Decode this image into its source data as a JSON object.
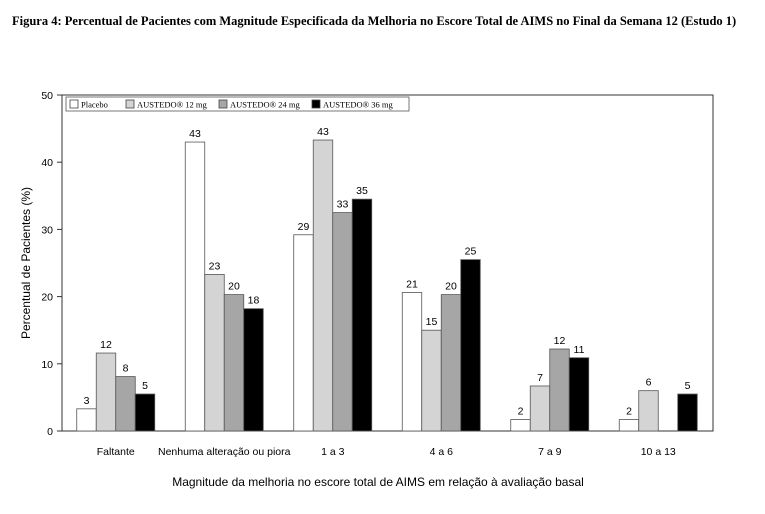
{
  "figure_title": "Figura 4: Percentual de Pacientes com Magnitude Especificada da Melhoria no Escore Total de AIMS no Final da Semana 12 (Estudo 1)",
  "chart_data": {
    "type": "bar",
    "title": "",
    "xlabel": "Magnitude da melhoria no escore total de AIMS em relação à avaliação basal",
    "ylabel": "Percentual de Pacientes (%)",
    "ylim": [
      0,
      50
    ],
    "yticks": [
      0,
      10,
      20,
      30,
      40,
      50
    ],
    "grid": false,
    "legend_position": "top-left",
    "categories": [
      "Faltante",
      "Nenhuma alteração ou piora",
      "1 a 3",
      "4 a 6",
      "7 a 9",
      "10 a 13"
    ],
    "series": [
      {
        "name": "Placebo",
        "color": "#ffffff",
        "values": [
          3,
          43,
          29,
          21,
          2,
          2
        ],
        "display": [
          3.3,
          43,
          29.2,
          20.6,
          1.7,
          1.7
        ]
      },
      {
        "name": "AUSTEDO® 12 mg",
        "color": "#d4d4d4",
        "values": [
          12,
          23,
          43,
          15,
          7,
          6
        ],
        "display": [
          11.6,
          23.3,
          43.3,
          15,
          6.7,
          6
        ]
      },
      {
        "name": "AUSTEDO® 24 mg",
        "color": "#a6a6a6",
        "values": [
          8,
          20,
          33,
          20,
          12,
          0
        ],
        "display": [
          8.1,
          20.3,
          32.5,
          20.3,
          12.2,
          null
        ]
      },
      {
        "name": "AUSTEDO® 36 mg",
        "color": "#000000",
        "values": [
          5,
          18,
          35,
          25,
          11,
          5
        ],
        "display": [
          5.5,
          18.2,
          34.5,
          25.5,
          10.9,
          5.5
        ]
      }
    ],
    "labels": [
      [
        "3",
        "43",
        "29",
        "21",
        "2",
        "2"
      ],
      [
        "12",
        "23",
        "43",
        "15",
        "7",
        "6"
      ],
      [
        "8",
        "20",
        "33",
        "20",
        "12",
        ""
      ],
      [
        "5",
        "18",
        "35",
        "25",
        "11",
        "5"
      ]
    ]
  }
}
